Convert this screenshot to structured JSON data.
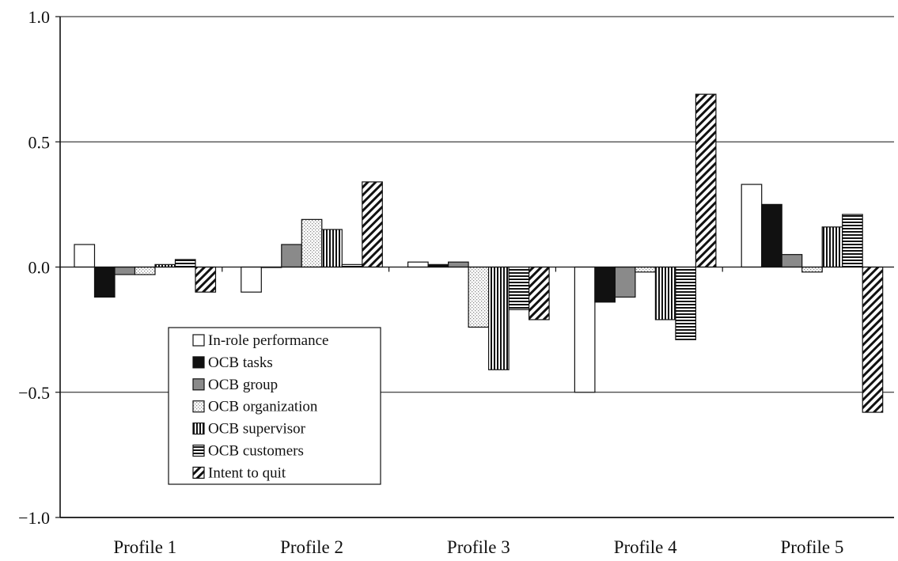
{
  "chart_data": {
    "type": "bar",
    "categories": [
      "Profile 1",
      "Profile 2",
      "Profile 3",
      "Profile 4",
      "Profile 5"
    ],
    "series": [
      {
        "name": "In-role performance",
        "pattern": "white",
        "values": [
          0.09,
          -0.1,
          0.02,
          -0.5,
          0.33
        ]
      },
      {
        "name": "OCB tasks",
        "pattern": "black",
        "values": [
          -0.12,
          0.0,
          0.01,
          -0.14,
          0.25
        ]
      },
      {
        "name": "OCB group",
        "pattern": "gray",
        "values": [
          -0.03,
          0.09,
          0.02,
          -0.12,
          0.05
        ]
      },
      {
        "name": "OCB organization",
        "pattern": "dots",
        "values": [
          -0.03,
          0.19,
          -0.24,
          -0.02,
          -0.02
        ]
      },
      {
        "name": "OCB supervisor",
        "pattern": "vlines",
        "values": [
          0.01,
          0.15,
          -0.41,
          -0.21,
          0.16
        ]
      },
      {
        "name": "OCB customers",
        "pattern": "hlines",
        "values": [
          0.03,
          0.01,
          -0.17,
          -0.29,
          0.21
        ]
      },
      {
        "name": "Intent to quit",
        "pattern": "diag",
        "values": [
          -0.1,
          0.34,
          -0.21,
          0.69,
          -0.58
        ]
      }
    ],
    "yticks": [
      "1.0",
      "0.5",
      "0.0",
      "−0.5",
      "−1.0"
    ],
    "ylim": [
      -1.0,
      1.0
    ],
    "grid": true,
    "legend_position": "inside bottom-left"
  },
  "colors": {
    "black": "#111111",
    "gray": "#8a8a8a",
    "dot": "#7a7a7a",
    "white": "#ffffff"
  }
}
